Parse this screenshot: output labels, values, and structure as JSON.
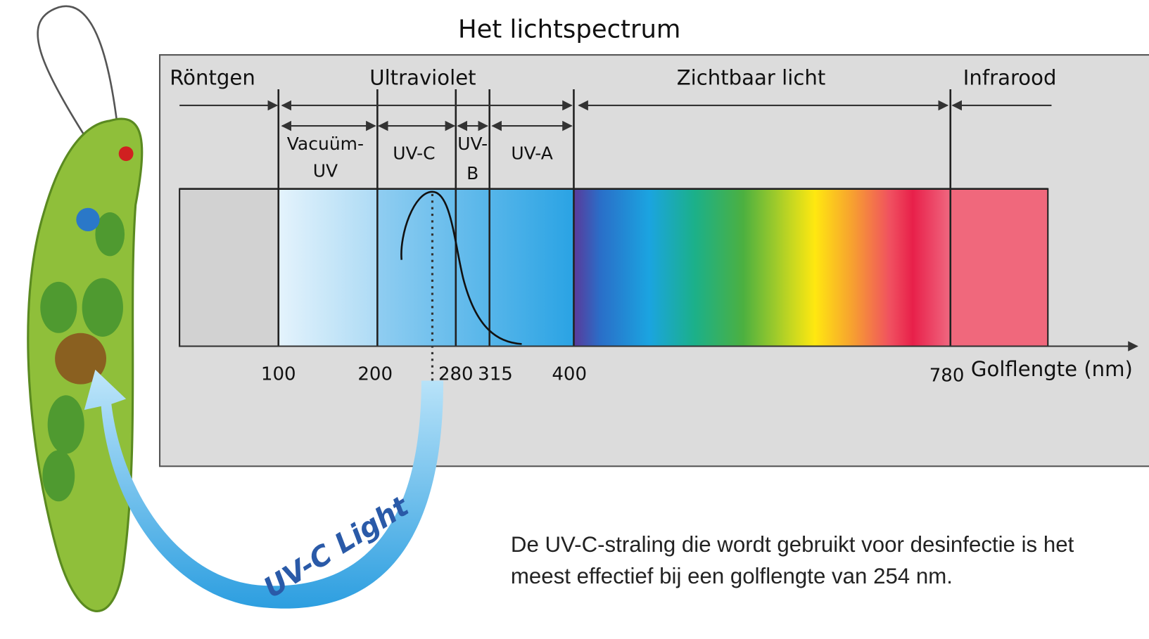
{
  "title": "Het lichtspectrum",
  "regions": [
    "Röntgen",
    "Ultraviolet",
    "Zichtbaar licht",
    "Infrarood"
  ],
  "subregions": [
    [
      "Vacuüm-",
      "UV"
    ],
    [
      "UV-C"
    ],
    [
      "UV-",
      "B"
    ],
    [
      "UV-A"
    ]
  ],
  "ticks": [
    "100",
    "200",
    "280",
    "315",
    "400",
    "780"
  ],
  "axis_label": "Golflengte (nm)",
  "arrow_label": "UV-C Light",
  "caption": [
    "De UV-C-straling die wordt gebruikt voor desinfectie is het",
    "meest effectief bij een golflengte van 254 nm."
  ]
}
